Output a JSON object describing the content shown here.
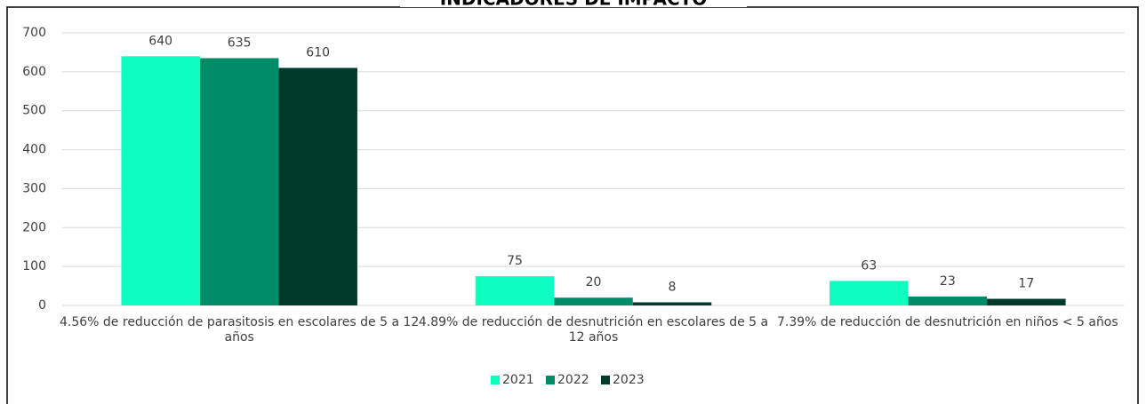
{
  "chart_data": {
    "type": "bar",
    "title": "INDICADORES DE IMPACTO",
    "categories": [
      "4.56% de reducción de parasitosis en escolares de 5 a 12 años",
      "4.89% de reducción de desnutrición en escolares de 5 a 12 años",
      "7.39% de reducción de desnutrición en  niños < 5 años"
    ],
    "series": [
      {
        "name": "2021",
        "color": "#0dffbf",
        "values": [
          640,
          75,
          63
        ]
      },
      {
        "name": "2022",
        "color": "#008c66",
        "values": [
          635,
          20,
          23
        ]
      },
      {
        "name": "2023",
        "color": "#003a2b",
        "values": [
          610,
          8,
          17
        ]
      }
    ],
    "ylim": [
      0,
      700
    ],
    "yticks": [
      0,
      100,
      200,
      300,
      400,
      500,
      600,
      700
    ],
    "grid": true,
    "legend": "bottom"
  }
}
